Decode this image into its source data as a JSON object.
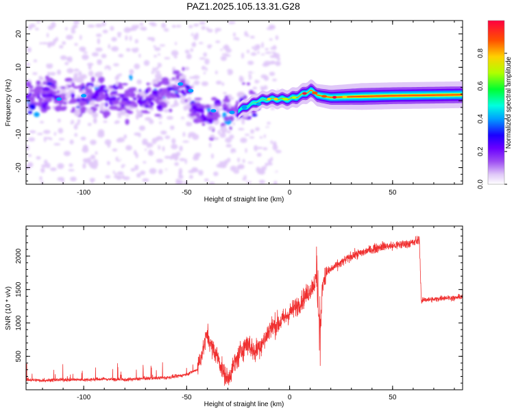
{
  "title": "PAZ1.2025.105.13.31.G28",
  "colors": {
    "snr_line": "#f03030",
    "frame": "#000000",
    "colormap": [
      "#ffffff",
      "#e0c8f8",
      "#9d4df2",
      "#6a00ff",
      "#1a00ff",
      "#00a0ff",
      "#00ffe0",
      "#00ff30",
      "#b0ff00",
      "#ffd000",
      "#ff5000",
      "#ff0040"
    ]
  },
  "chart_data": [
    {
      "type": "heatmap",
      "title": "PAZ1.2025.105.13.31.G28",
      "xlabel": "Height of straight line (km)",
      "ylabel": "Frequency (Hz)",
      "xlim": [
        -128,
        84
      ],
      "ylim": [
        -25,
        24
      ],
      "x_ticks": [
        -100,
        -50,
        0,
        50
      ],
      "y_ticks": [
        -20,
        -10,
        0,
        10,
        20
      ],
      "colorbar": {
        "label": "Normalized spectral amplitude",
        "range": [
          0,
          1
        ],
        "ticks": [
          0.0,
          0.2,
          0.4,
          0.6,
          0.8
        ]
      },
      "ridge": [
        {
          "x": -128,
          "f": 1.5
        },
        {
          "x": -110,
          "f": 1.0
        },
        {
          "x": -100,
          "f": 1.5
        },
        {
          "x": -80,
          "f": 0.5
        },
        {
          "x": -60,
          "f": 1.5
        },
        {
          "x": -52,
          "f": 4.5
        },
        {
          "x": -45,
          "f": -2.0
        },
        {
          "x": -38,
          "f": -6.0
        },
        {
          "x": -35,
          "f": -3.0
        },
        {
          "x": -30,
          "f": -2.0
        },
        {
          "x": -25,
          "f": -3.0
        },
        {
          "x": -20,
          "f": -1.5
        },
        {
          "x": -15,
          "f": 0.0
        },
        {
          "x": -10,
          "f": 0.5
        },
        {
          "x": -5,
          "f": 0.5
        },
        {
          "x": 0,
          "f": 0.5
        },
        {
          "x": 5,
          "f": 1.5
        },
        {
          "x": 10,
          "f": 3.0
        },
        {
          "x": 15,
          "f": 1.5
        },
        {
          "x": 20,
          "f": 1.0
        },
        {
          "x": 30,
          "f": 1.2
        },
        {
          "x": 50,
          "f": 1.5
        },
        {
          "x": 84,
          "f": 1.8
        }
      ]
    },
    {
      "type": "line",
      "xlabel": "Height of straight line (km)",
      "ylabel": "SNR (10 * v/v)",
      "xlim": [
        -128,
        84
      ],
      "ylim": [
        0,
        2450
      ],
      "x_ticks": [
        -100,
        -50,
        0,
        50
      ],
      "y_ticks": [
        500,
        1000,
        1500,
        2000
      ],
      "series": [
        {
          "x": [
            -128,
            -120,
            -110,
            -100,
            -90,
            -80,
            -70,
            -60,
            -55,
            -50,
            -45,
            -42,
            -40,
            -38,
            -35,
            -32,
            -30,
            -28,
            -25,
            -22,
            -20,
            -17,
            -15,
            -12,
            -10,
            -8,
            -5,
            0,
            5,
            10,
            13,
            14,
            15,
            16,
            18,
            20,
            25,
            30,
            35,
            40,
            45,
            50,
            55,
            60,
            63,
            64,
            65,
            70,
            75,
            80,
            84
          ],
          "y": [
            150,
            140,
            150,
            150,
            160,
            150,
            170,
            180,
            200,
            230,
            300,
            600,
            850,
            650,
            500,
            250,
            160,
            300,
            500,
            650,
            700,
            550,
            650,
            750,
            900,
            950,
            1000,
            1150,
            1300,
            1500,
            1650,
            1150,
            900,
            1600,
            1750,
            1800,
            1900,
            2000,
            2050,
            2100,
            2150,
            2150,
            2180,
            2200,
            2250,
            1300,
            1350,
            1350,
            1380,
            1370,
            1400
          ]
        }
      ]
    }
  ]
}
